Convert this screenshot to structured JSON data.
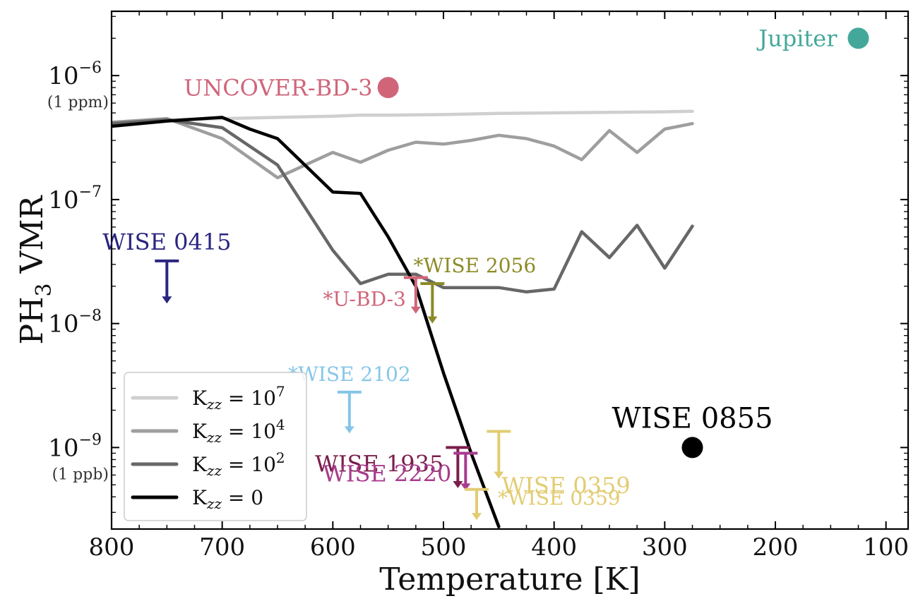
{
  "chart_data": {
    "type": "line",
    "xlabel": "Temperature [K]",
    "ylabel_main": "PH",
    "ylabel_sub": "3",
    "ylabel_rest": " VMR",
    "x_scale": "linear",
    "x_reversed": true,
    "xlim": [
      800,
      80
    ],
    "y_scale": "log",
    "ylim": [
      2.2e-10,
      3.3e-06
    ],
    "x_ticks": [
      800,
      700,
      600,
      500,
      400,
      300,
      200,
      100
    ],
    "x_tick_labels": [
      "800",
      "700",
      "600",
      "500",
      "400",
      "300",
      "200",
      "100"
    ],
    "y_ticks": [
      {
        "value": 1e-06,
        "base": "10",
        "exp": "−6",
        "sub": "(1 ppm)"
      },
      {
        "value": 1e-07,
        "base": "10",
        "exp": "−7",
        "sub": ""
      },
      {
        "value": 1e-08,
        "base": "10",
        "exp": "−8",
        "sub": ""
      },
      {
        "value": 1e-09,
        "base": "10",
        "exp": "−9",
        "sub": "(1 ppb)"
      }
    ],
    "grid": false,
    "legend_position": "lower-left",
    "series": [
      {
        "legend_prefix": "K",
        "legend_sub": "zz",
        "legend_eq": " = 10",
        "legend_sup": "7",
        "color": "#cfcfcf",
        "points": [
          [
            800,
            4.2e-07
          ],
          [
            750,
            4.4e-07
          ],
          [
            700,
            4.5e-07
          ],
          [
            650,
            4.6e-07
          ],
          [
            600,
            4.7e-07
          ],
          [
            575,
            4.8e-07
          ],
          [
            550,
            4.8e-07
          ],
          [
            500,
            4.85e-07
          ],
          [
            450,
            4.95e-07
          ],
          [
            400,
            5e-07
          ],
          [
            350,
            5.05e-07
          ],
          [
            300,
            5.1e-07
          ],
          [
            275,
            5.15e-07
          ]
        ]
      },
      {
        "legend_prefix": "K",
        "legend_sub": "zz",
        "legend_eq": " = 10",
        "legend_sup": "4",
        "color": "#9e9e9e",
        "points": [
          [
            800,
            4.2e-07
          ],
          [
            750,
            4.5e-07
          ],
          [
            700,
            3.1e-07
          ],
          [
            650,
            1.5e-07
          ],
          [
            625,
            1.9e-07
          ],
          [
            600,
            2.4e-07
          ],
          [
            575,
            2e-07
          ],
          [
            550,
            2.5e-07
          ],
          [
            525,
            2.9e-07
          ],
          [
            500,
            2.8e-07
          ],
          [
            475,
            3e-07
          ],
          [
            450,
            3.3e-07
          ],
          [
            425,
            3.1e-07
          ],
          [
            400,
            2.7e-07
          ],
          [
            375,
            2.1e-07
          ],
          [
            350,
            3.6e-07
          ],
          [
            325,
            2.4e-07
          ],
          [
            300,
            3.7e-07
          ],
          [
            275,
            4.1e-07
          ]
        ]
      },
      {
        "legend_prefix": "K",
        "legend_sub": "zz",
        "legend_eq": " = 10",
        "legend_sup": "2",
        "color": "#676767",
        "points": [
          [
            800,
            4.1e-07
          ],
          [
            750,
            4.4e-07
          ],
          [
            700,
            3.8e-07
          ],
          [
            650,
            1.9e-07
          ],
          [
            600,
            3.9e-08
          ],
          [
            575,
            2.1e-08
          ],
          [
            550,
            2.5e-08
          ],
          [
            525,
            2.5e-08
          ],
          [
            500,
            1.95e-08
          ],
          [
            450,
            1.95e-08
          ],
          [
            425,
            1.8e-08
          ],
          [
            400,
            1.9e-08
          ],
          [
            375,
            5.5e-08
          ],
          [
            350,
            3.4e-08
          ],
          [
            325,
            6.2e-08
          ],
          [
            300,
            2.8e-08
          ],
          [
            275,
            6.1e-08
          ]
        ]
      },
      {
        "legend_prefix": "K",
        "legend_sub": "zz",
        "legend_eq": " = 0",
        "legend_sup": "",
        "color": "#000000",
        "points": [
          [
            800,
            3.9e-07
          ],
          [
            750,
            4.3e-07
          ],
          [
            700,
            4.6e-07
          ],
          [
            675,
            3.7e-07
          ],
          [
            650,
            3.1e-07
          ],
          [
            600,
            1.15e-07
          ],
          [
            575,
            1.12e-07
          ],
          [
            550,
            5e-08
          ],
          [
            525,
            2e-08
          ],
          [
            500,
            4e-09
          ],
          [
            475,
            9e-10
          ],
          [
            450,
            2.3e-10
          ]
        ]
      }
    ],
    "measurements": [
      {
        "label": "Jupiter",
        "type": "point",
        "x": 125,
        "y": 2e-06,
        "color": "#43a89a",
        "label_pos": "left",
        "font_size": 32
      },
      {
        "label": "UNCOVER-BD-3",
        "type": "point",
        "x": 550,
        "y": 8e-07,
        "color": "#d0657a",
        "label_pos": "left",
        "font_size": 32
      },
      {
        "label": "WISE 0855",
        "type": "point",
        "x": 275,
        "y": 1e-09,
        "color": "#000000",
        "label_pos": "above",
        "font_size": 40
      },
      {
        "label": "WISE 0415",
        "type": "upper_limit",
        "x": 750,
        "y": 3.2e-08,
        "y_tip": 1.45e-08,
        "color": "#2a2580",
        "label_pos": "above",
        "font_size": 32
      },
      {
        "label": "*WISE 2056",
        "type": "upper_limit",
        "x": 510,
        "y": 2.1e-08,
        "y_tip": 1e-08,
        "color": "#8c8a26",
        "label_pos": "above",
        "font_size": 28
      },
      {
        "label": "*U-BD-3",
        "type": "upper_limit",
        "x": 525,
        "y": 2.35e-08,
        "y_tip": 1.2e-08,
        "color": "#d0657a",
        "label_pos": "left",
        "font_size": 28
      },
      {
        "label": "*WISE 2102",
        "type": "upper_limit",
        "x": 585,
        "y": 2.8e-09,
        "y_tip": 1.3e-09,
        "color": "#86c6e8",
        "label_pos": "above",
        "font_size": 28
      },
      {
        "label": "WISE 1935",
        "type": "upper_limit",
        "x": 487,
        "y": 1e-09,
        "y_tip": 4.7e-10,
        "color": "#7a1e4c",
        "label_pos": "left",
        "font_size": 32
      },
      {
        "label": "WISE 2220",
        "type": "upper_limit",
        "x": 480,
        "y": 9e-10,
        "y_tip": 4.5e-10,
        "color": "#a83b8e",
        "label_pos": "left_below",
        "font_size": 32
      },
      {
        "label": "WISE 0359",
        "type": "upper_limit",
        "x": 450,
        "y": 1.35e-09,
        "y_tip": 5.6e-10,
        "color": "#e2cc72",
        "label_pos": "below_right",
        "font_size": 32
      },
      {
        "label": "*WISE 0359",
        "type": "upper_limit",
        "x": 470,
        "y": 4.6e-10,
        "y_tip": 2.6e-10,
        "color": "#e2cc72",
        "label_pos": "right",
        "font_size": 28
      }
    ]
  }
}
